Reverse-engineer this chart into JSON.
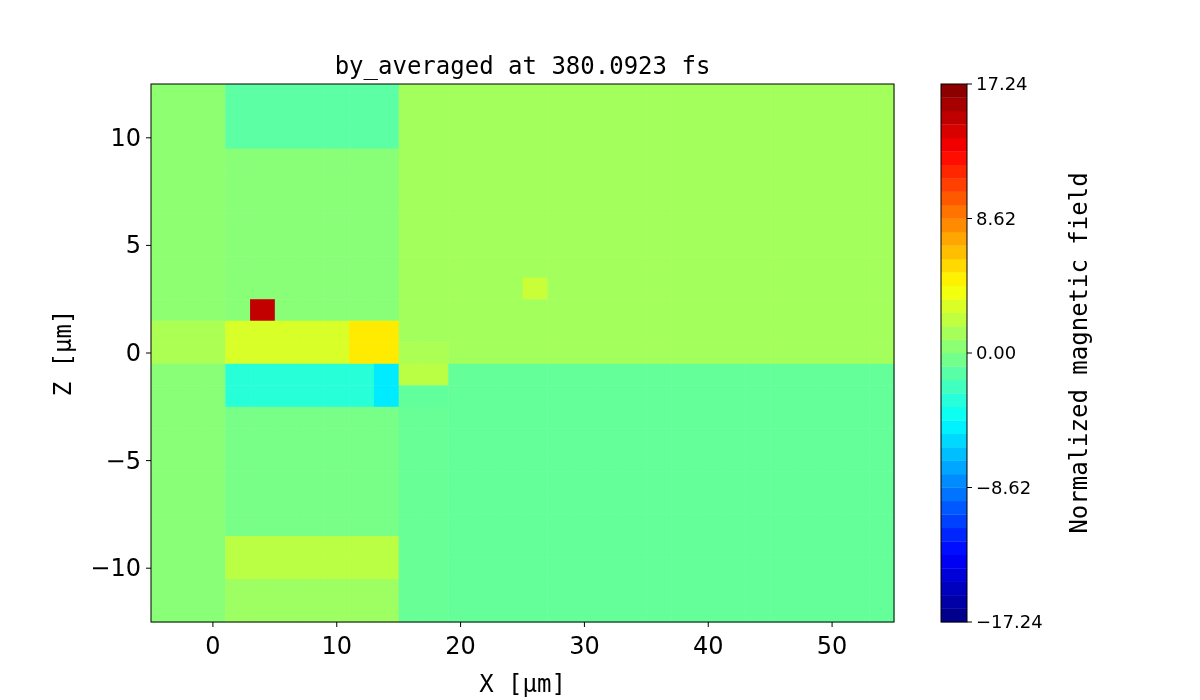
{
  "chart_data": {
    "type": "heatmap",
    "title": "by_averaged at 380.0923 fs",
    "xlabel": "X [μm]",
    "ylabel": "Z [μm]",
    "clabel": "Normalized magnetic field",
    "categories": [
      null,
      null,
      "0",
      null,
      null,
      null,
      null,
      "10",
      null,
      null,
      null,
      null,
      "20",
      null,
      null,
      null,
      null,
      "30",
      null,
      null,
      null,
      null,
      "40",
      null,
      null,
      null,
      null,
      "50",
      null,
      null
    ],
    "y_categories": [
      null,
      null,
      "10",
      null,
      null,
      null,
      null,
      "5",
      null,
      null,
      null,
      null,
      "0",
      null,
      null,
      null,
      null,
      "−5",
      null,
      null,
      null,
      null,
      "−10",
      null,
      null
    ],
    "clim": [
      -17.24,
      17.24
    ],
    "cticks": [
      {
        "value": -17.24,
        "label": "−17.24"
      },
      {
        "value": -8.62,
        "label": "−8.62"
      },
      {
        "value": 0,
        "label": "0.00"
      },
      8.62,
      17.24
    ],
    "cells": [
      [
        0.5,
        0.5,
        0.5,
        -1.2,
        -1.2,
        -1.2,
        -1.2,
        -1.2,
        -1.2,
        -1.2,
        1.2,
        1.2,
        1.2,
        1.2,
        1.2,
        1.2,
        1.2,
        1.2,
        1.2,
        1.2,
        1.2,
        1.2,
        1.2,
        1.2,
        1.2,
        1.2,
        1.2,
        1.2,
        1.2,
        1.2
      ],
      [
        0.5,
        0.5,
        0.5,
        -1.2,
        -1.2,
        -1.2,
        -1.2,
        -1.2,
        -1.2,
        -1.2,
        1.2,
        1.2,
        1.2,
        1.2,
        1.2,
        1.2,
        1.2,
        1.2,
        1.2,
        1.2,
        1.2,
        1.2,
        1.2,
        1.2,
        1.2,
        1.2,
        1.2,
        1.2,
        1.2,
        1.2
      ],
      [
        0.5,
        0.5,
        0.5,
        -1.2,
        -1.2,
        -1.2,
        -1.2,
        -1.2,
        -1.2,
        -1.2,
        1.2,
        1.2,
        1.2,
        1.2,
        1.2,
        1.2,
        1.2,
        1.2,
        1.2,
        1.2,
        1.2,
        1.2,
        1.2,
        1.2,
        1.2,
        1.2,
        1.2,
        1.2,
        1.2,
        1.2
      ],
      [
        0.5,
        0.5,
        0.5,
        0.3,
        0.3,
        0.3,
        0.3,
        0.3,
        0.3,
        0.3,
        1.2,
        1.2,
        1.2,
        1.2,
        1.2,
        1.2,
        1.2,
        1.2,
        1.2,
        1.2,
        1.2,
        1.2,
        1.2,
        1.2,
        1.2,
        1.2,
        1.2,
        1.2,
        1.2,
        1.2
      ],
      [
        0.5,
        0.5,
        0.5,
        0.3,
        0.3,
        0.3,
        0.3,
        0.3,
        0.3,
        0.3,
        1.2,
        1.2,
        1.2,
        1.2,
        1.2,
        1.2,
        1.2,
        1.2,
        1.2,
        1.2,
        1.2,
        1.2,
        1.2,
        1.2,
        1.2,
        1.2,
        1.2,
        1.2,
        1.2,
        1.2
      ],
      [
        0.5,
        0.5,
        0.5,
        0.3,
        0.3,
        0.3,
        0.3,
        0.3,
        0.3,
        0.3,
        1.2,
        1.2,
        1.2,
        1.2,
        1.2,
        1.2,
        1.2,
        1.2,
        1.2,
        1.2,
        1.2,
        1.2,
        1.2,
        1.2,
        1.2,
        1.2,
        1.2,
        1.2,
        1.2,
        1.2
      ],
      [
        0.5,
        0.5,
        0.5,
        0.3,
        0.3,
        0.3,
        0.3,
        0.3,
        0.3,
        0.3,
        1.2,
        1.2,
        1.2,
        1.2,
        1.2,
        1.2,
        1.2,
        1.2,
        1.2,
        1.2,
        1.2,
        1.2,
        1.2,
        1.2,
        1.2,
        1.2,
        1.2,
        1.2,
        1.2,
        1.2
      ],
      [
        0.5,
        0.5,
        0.5,
        0.3,
        0.3,
        0.3,
        0.3,
        0.3,
        0.3,
        0.3,
        1.2,
        1.2,
        1.2,
        1.2,
        1.2,
        1.2,
        1.2,
        1.2,
        1.2,
        1.2,
        1.2,
        1.2,
        1.2,
        1.2,
        1.2,
        1.2,
        1.2,
        1.2,
        1.2,
        1.2
      ],
      [
        0.5,
        0.5,
        0.5,
        0.3,
        0.3,
        0.3,
        0.3,
        0.3,
        0.3,
        0.3,
        1.2,
        1.2,
        1.2,
        1.2,
        1.2,
        1.2,
        1.2,
        1.2,
        1.2,
        1.2,
        1.2,
        1.2,
        1.2,
        1.2,
        1.2,
        1.2,
        1.2,
        1.2,
        1.2,
        1.2
      ],
      [
        0.5,
        0.5,
        0.5,
        0.3,
        0.3,
        0.3,
        0.3,
        0.3,
        0.3,
        0.3,
        1.2,
        1.2,
        1.2,
        1.2,
        1.2,
        2.5,
        1.2,
        1.2,
        1.2,
        1.2,
        1.2,
        1.2,
        1.2,
        1.2,
        1.2,
        1.2,
        1.2,
        1.2,
        1.2,
        1.2
      ],
      [
        0.5,
        0.5,
        0.5,
        0.3,
        15,
        0.3,
        0.3,
        0.3,
        0.3,
        0.3,
        1.2,
        1.2,
        1.2,
        1.2,
        1.2,
        1.2,
        1.2,
        1.2,
        1.2,
        1.2,
        1.2,
        1.2,
        1.2,
        1.2,
        1.2,
        1.2,
        1.2,
        1.2,
        1.2,
        1.2
      ],
      [
        1.5,
        1.5,
        1.5,
        3,
        3,
        3,
        3,
        3,
        5,
        5,
        1.2,
        1.2,
        1.2,
        1.2,
        1.2,
        1.2,
        1.2,
        1.2,
        1.2,
        1.2,
        1.2,
        1.2,
        1.2,
        1.2,
        1.2,
        1.2,
        1.2,
        1.2,
        1.2,
        1.2
      ],
      [
        1.5,
        1.5,
        1.5,
        3,
        3,
        3,
        3,
        3,
        5,
        5,
        1.5,
        1.5,
        1.2,
        1.2,
        1.2,
        1.2,
        1.2,
        1.2,
        1.2,
        1.2,
        1.2,
        1.2,
        1.2,
        1.2,
        1.2,
        1.2,
        1.2,
        1.2,
        1.2,
        1.2
      ],
      [
        0.3,
        0.3,
        0.3,
        -3,
        -3,
        -3,
        -3,
        -3,
        -3,
        -5,
        2,
        2,
        -0.9,
        -0.9,
        -0.9,
        -0.9,
        -0.9,
        -0.9,
        -0.9,
        -0.9,
        -0.9,
        -0.9,
        -0.9,
        -0.9,
        -0.9,
        -0.9,
        -0.9,
        -0.9,
        -0.9,
        -0.9
      ],
      [
        0.3,
        0.3,
        0.3,
        -3,
        -3,
        -3,
        -3,
        -3,
        -3,
        -5,
        -1,
        -1,
        -0.9,
        -0.9,
        -0.9,
        -0.9,
        -0.9,
        -0.9,
        -0.9,
        -0.9,
        -0.9,
        -0.9,
        -0.9,
        -0.9,
        -0.9,
        -0.9,
        -0.9,
        -0.9,
        -0.9,
        -0.9
      ],
      [
        0.3,
        0.3,
        0.3,
        -0.3,
        -0.3,
        -0.3,
        -0.3,
        -0.3,
        -0.3,
        -0.3,
        -0.8,
        -0.8,
        -0.9,
        -0.9,
        -0.9,
        -0.9,
        -0.9,
        -0.9,
        -0.9,
        -0.9,
        -0.9,
        -0.9,
        -0.9,
        -0.9,
        -0.9,
        -0.9,
        -0.9,
        -0.9,
        -0.9,
        -0.9
      ],
      [
        0.3,
        0.3,
        0.3,
        -0.3,
        -0.3,
        -0.3,
        -0.3,
        -0.3,
        -0.3,
        -0.3,
        -0.8,
        -0.8,
        -0.9,
        -0.9,
        -0.9,
        -0.9,
        -0.9,
        -0.9,
        -0.9,
        -0.9,
        -0.9,
        -0.9,
        -0.9,
        -0.9,
        -0.9,
        -0.9,
        -0.9,
        -0.9,
        -0.9,
        -0.9
      ],
      [
        0.3,
        0.3,
        0.3,
        -0.3,
        -0.3,
        -0.3,
        -0.3,
        -0.3,
        -0.3,
        -0.3,
        -0.8,
        -0.8,
        -0.9,
        -0.9,
        -0.9,
        -0.9,
        -0.9,
        -0.9,
        -0.9,
        -0.9,
        -0.9,
        -0.9,
        -0.9,
        -0.9,
        -0.9,
        -0.9,
        -0.9,
        -0.9,
        -0.9,
        -0.9
      ],
      [
        0.3,
        0.3,
        0.3,
        -0.3,
        -0.3,
        -0.3,
        -0.3,
        -0.3,
        -0.3,
        -0.3,
        -0.8,
        -0.8,
        -0.9,
        -0.9,
        -0.9,
        -0.9,
        -0.9,
        -0.9,
        -0.9,
        -0.9,
        -0.9,
        -0.9,
        -0.9,
        -0.9,
        -0.9,
        -0.9,
        -0.9,
        -0.9,
        -0.9,
        -0.9
      ],
      [
        0.3,
        0.3,
        0.3,
        -0.3,
        -0.3,
        -0.3,
        -0.3,
        -0.3,
        -0.3,
        -0.3,
        -0.8,
        -0.8,
        -0.9,
        -0.9,
        -0.9,
        -0.9,
        -0.9,
        -0.9,
        -0.9,
        -0.9,
        -0.9,
        -0.9,
        -0.9,
        -0.9,
        -0.9,
        -0.9,
        -0.9,
        -0.9,
        -0.9,
        -0.9
      ],
      [
        0.3,
        0.3,
        0.3,
        -0.3,
        -0.3,
        -0.3,
        -0.3,
        -0.3,
        -0.3,
        -0.3,
        -0.8,
        -0.8,
        -0.9,
        -0.9,
        -0.9,
        -0.9,
        -0.9,
        -0.9,
        -0.9,
        -0.9,
        -0.9,
        -0.9,
        -0.9,
        -0.9,
        -0.9,
        -0.9,
        -0.9,
        -0.9,
        -0.9,
        -0.9
      ],
      [
        0.3,
        0.3,
        0.3,
        2,
        2,
        2,
        2,
        2,
        2,
        2,
        -0.8,
        -0.8,
        -0.9,
        -0.9,
        -0.9,
        -0.9,
        -0.9,
        -0.9,
        -0.9,
        -0.9,
        -0.9,
        -0.9,
        -0.9,
        -0.9,
        -0.9,
        -0.9,
        -0.9,
        -0.9,
        -0.9,
        -0.9
      ],
      [
        0.3,
        0.3,
        0.3,
        2,
        2,
        2,
        2,
        2,
        2,
        2,
        -0.8,
        -0.8,
        -0.9,
        -0.9,
        -0.9,
        -0.9,
        -0.9,
        -0.9,
        -0.9,
        -0.9,
        -0.9,
        -0.9,
        -0.9,
        -0.9,
        -0.9,
        -0.9,
        -0.9,
        -0.9,
        -0.9,
        -0.9
      ],
      [
        0.3,
        0.3,
        0.3,
        1,
        1,
        1,
        1,
        1,
        1,
        1,
        -0.8,
        -0.8,
        -0.9,
        -0.9,
        -0.9,
        -0.9,
        -0.9,
        -0.9,
        -0.9,
        -0.9,
        -0.9,
        -0.9,
        -0.9,
        -0.9,
        -0.9,
        -0.9,
        -0.9,
        -0.9,
        -0.9,
        -0.9
      ],
      [
        0.3,
        0.3,
        0.3,
        1,
        1,
        1,
        1,
        1,
        1,
        1,
        -0.8,
        -0.8,
        -0.9,
        -0.9,
        -0.9,
        -0.9,
        -0.9,
        -0.9,
        -0.9,
        -0.9,
        -0.9,
        -0.9,
        -0.9,
        -0.9,
        -0.9,
        -0.9,
        -0.9,
        -0.9,
        -0.9,
        -0.9
      ]
    ]
  }
}
